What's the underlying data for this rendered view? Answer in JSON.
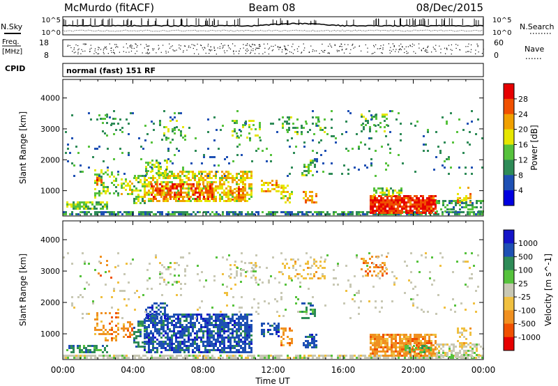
{
  "header": {
    "station": "McMurdo (fitACF)",
    "beam": "Beam 08",
    "date": "08/Dec/2015"
  },
  "panels": {
    "nsky_label": "N.Sky",
    "nsearch_label": "N.Search",
    "freq_label_line1": "Freq.",
    "freq_label_line2": "[MHz]",
    "nave_label": "Nave",
    "cpid_label": "CPID",
    "cpid_value": "normal (fast) 151 RF",
    "noise_ticks_left": [
      "10^5",
      "10^0"
    ],
    "noise_ticks_right": [
      "10^5",
      "10^0"
    ],
    "freq_ticks": [
      "18",
      "8"
    ],
    "nave_ticks": [
      "60",
      "0"
    ]
  },
  "colors": {
    "frame": "#000000",
    "power_scale": [
      "#0000e0",
      "#1e50b4",
      "#2e8b57",
      "#56c23c",
      "#e6e600",
      "#f0a000",
      "#f05000",
      "#e60000"
    ],
    "velocity_scale": [
      "#e60000",
      "#f05000",
      "#f09020",
      "#f0c040",
      "#c8c8b4",
      "#56c23c",
      "#2e8b57",
      "#1e50b4",
      "#1414c8"
    ]
  },
  "chart_data": [
    {
      "type": "heatmap",
      "title": "",
      "xlabel": "Time UT",
      "ylabel": "Slant Range [km]",
      "xlim": [
        "00:00",
        "24:00"
      ],
      "ylim": [
        180,
        4600
      ],
      "x_tick_labels": [
        "00:00",
        "04:00",
        "08:00",
        "12:00",
        "16:00",
        "20:00",
        "00:00"
      ],
      "y_ticks": [
        1000,
        2000,
        3000,
        4000
      ],
      "y_tick_labels": [
        "1000",
        "2000",
        "3000",
        "4000"
      ],
      "colorbar": {
        "label": "Power [dB]",
        "range": [
          0,
          30
        ],
        "ticks": [
          4,
          8,
          12,
          16,
          20,
          24,
          28
        ],
        "tick_labels": [
          "4",
          "8",
          "12",
          "16",
          "20",
          "24",
          "28"
        ]
      },
      "regions": [
        {
          "t0": 0.0,
          "t1": 24.0,
          "r0": 200,
          "r1": 330,
          "value": 8,
          "density": 0.7
        },
        {
          "t0": 0.2,
          "t1": 2.5,
          "r0": 400,
          "r1": 650,
          "value": 14,
          "density": 0.7
        },
        {
          "t0": 1.8,
          "t1": 3.2,
          "r0": 800,
          "r1": 1700,
          "value": 14,
          "density": 0.35
        },
        {
          "t0": 1.9,
          "t1": 2.2,
          "r0": 1200,
          "r1": 1450,
          "value": 24,
          "density": 0.5
        },
        {
          "t0": 3.3,
          "t1": 3.9,
          "r0": 900,
          "r1": 1400,
          "value": 16,
          "density": 0.45
        },
        {
          "t0": 4.0,
          "t1": 4.6,
          "r0": 600,
          "r1": 1500,
          "value": 14,
          "density": 0.5
        },
        {
          "t0": 4.6,
          "t1": 10.8,
          "r0": 650,
          "r1": 1650,
          "value": 18,
          "density": 0.6
        },
        {
          "t0": 5.0,
          "t1": 8.5,
          "r0": 750,
          "r1": 1250,
          "value": 26,
          "density": 0.55
        },
        {
          "t0": 4.7,
          "t1": 6.0,
          "r0": 1500,
          "r1": 2000,
          "value": 14,
          "density": 0.5
        },
        {
          "t0": 9.5,
          "t1": 10.3,
          "r0": 700,
          "r1": 1150,
          "value": 24,
          "density": 0.5
        },
        {
          "t0": 11.3,
          "t1": 12.3,
          "r0": 900,
          "r1": 1350,
          "value": 20,
          "density": 0.5
        },
        {
          "t0": 12.4,
          "t1": 13.1,
          "r0": 650,
          "r1": 1200,
          "value": 18,
          "density": 0.45
        },
        {
          "t0": 13.7,
          "t1": 14.5,
          "r0": 600,
          "r1": 1000,
          "value": 22,
          "density": 0.5
        },
        {
          "t0": 13.6,
          "t1": 14.4,
          "r0": 1500,
          "r1": 2000,
          "value": 12,
          "density": 0.45
        },
        {
          "t0": 2.0,
          "t1": 3.0,
          "r0": 2800,
          "r1": 3500,
          "value": 10,
          "density": 0.15
        },
        {
          "t0": 5.5,
          "t1": 7.0,
          "r0": 2600,
          "r1": 3300,
          "value": 12,
          "density": 0.2
        },
        {
          "t0": 9.5,
          "t1": 11.2,
          "r0": 2700,
          "r1": 3300,
          "value": 14,
          "density": 0.2
        },
        {
          "t0": 12.5,
          "t1": 15.0,
          "r0": 2800,
          "r1": 3400,
          "value": 12,
          "density": 0.2
        },
        {
          "t0": 17.0,
          "t1": 18.5,
          "r0": 2900,
          "r1": 3500,
          "value": 12,
          "density": 0.25
        },
        {
          "t0": 0.0,
          "t1": 24.0,
          "r0": 1500,
          "r1": 3600,
          "value": 8,
          "density": 0.04
        },
        {
          "t0": 17.5,
          "t1": 21.3,
          "r0": 300,
          "r1": 850,
          "value": 28,
          "density": 0.85
        },
        {
          "t0": 17.7,
          "t1": 19.3,
          "r0": 850,
          "r1": 1100,
          "value": 14,
          "density": 0.55
        },
        {
          "t0": 21.3,
          "t1": 24.0,
          "r0": 300,
          "r1": 700,
          "value": 10,
          "density": 0.5
        },
        {
          "t0": 22.5,
          "t1": 23.3,
          "r0": 600,
          "r1": 1200,
          "value": 20,
          "density": 0.35
        }
      ]
    },
    {
      "type": "heatmap",
      "title": "",
      "xlabel": "Time UT",
      "ylabel": "Slant Range [km]",
      "xlim": [
        "00:00",
        "24:00"
      ],
      "ylim": [
        180,
        4600
      ],
      "x_tick_labels": [
        "00:00",
        "04:00",
        "08:00",
        "12:00",
        "16:00",
        "20:00",
        "00:00"
      ],
      "y_ticks": [
        1000,
        2000,
        3000,
        4000
      ],
      "y_tick_labels": [
        "1000",
        "2000",
        "3000",
        "4000"
      ],
      "colorbar": {
        "label": "Velocity [m s^-1]",
        "tick_labels": [
          "1000",
          "500",
          "100",
          "25",
          "-25",
          "-100",
          "-500",
          "-1000"
        ]
      },
      "regions": [
        {
          "t0": 0.0,
          "t1": 24.0,
          "r0": 200,
          "r1": 330,
          "value": 0,
          "density": 0.7
        },
        {
          "t0": 0.2,
          "t1": 2.5,
          "r0": 400,
          "r1": 650,
          "value": 2,
          "density": 0.6
        },
        {
          "t0": 1.8,
          "t1": 3.2,
          "r0": 800,
          "r1": 1700,
          "value": -2,
          "density": 0.35
        },
        {
          "t0": 3.3,
          "t1": 3.9,
          "r0": 900,
          "r1": 1400,
          "value": -2,
          "density": 0.45
        },
        {
          "t0": 4.0,
          "t1": 4.6,
          "r0": 600,
          "r1": 1500,
          "value": 2,
          "density": 0.5
        },
        {
          "t0": 4.6,
          "t1": 10.8,
          "r0": 450,
          "r1": 1650,
          "value": 3,
          "density": 0.7
        },
        {
          "t0": 4.7,
          "t1": 6.0,
          "r0": 1500,
          "r1": 2000,
          "value": 3,
          "density": 0.5
        },
        {
          "t0": 11.3,
          "t1": 12.3,
          "r0": 900,
          "r1": 1350,
          "value": 3,
          "density": 0.5
        },
        {
          "t0": 12.4,
          "t1": 13.1,
          "r0": 650,
          "r1": 1200,
          "value": -2,
          "density": 0.45
        },
        {
          "t0": 13.7,
          "t1": 14.5,
          "r0": 600,
          "r1": 1000,
          "value": 3,
          "density": 0.5
        },
        {
          "t0": 13.6,
          "t1": 14.4,
          "r0": 1500,
          "r1": 2000,
          "value": 2,
          "density": 0.45
        },
        {
          "t0": 2.0,
          "t1": 3.0,
          "r0": 2800,
          "r1": 3500,
          "value": -2,
          "density": 0.15
        },
        {
          "t0": 5.5,
          "t1": 7.0,
          "r0": 2600,
          "r1": 3300,
          "value": 0,
          "density": 0.2
        },
        {
          "t0": 9.5,
          "t1": 11.2,
          "r0": 2700,
          "r1": 3300,
          "value": 0,
          "density": 0.2
        },
        {
          "t0": 12.5,
          "t1": 15.0,
          "r0": 2800,
          "r1": 3400,
          "value": -1,
          "density": 0.2
        },
        {
          "t0": 17.0,
          "t1": 18.5,
          "r0": 2900,
          "r1": 3500,
          "value": -2,
          "density": 0.25
        },
        {
          "t0": 0.0,
          "t1": 24.0,
          "r0": 1500,
          "r1": 3600,
          "value": 0,
          "density": 0.04
        },
        {
          "t0": 17.5,
          "t1": 21.3,
          "r0": 330,
          "r1": 1000,
          "value": -2,
          "density": 0.8
        },
        {
          "t0": 19.5,
          "t1": 21.0,
          "r0": 450,
          "r1": 650,
          "value": 1,
          "density": 0.4
        },
        {
          "t0": 21.3,
          "t1": 24.0,
          "r0": 300,
          "r1": 700,
          "value": 0,
          "density": 0.5
        },
        {
          "t0": 22.5,
          "t1": 23.3,
          "r0": 600,
          "r1": 1200,
          "value": -1,
          "density": 0.35
        }
      ]
    }
  ]
}
